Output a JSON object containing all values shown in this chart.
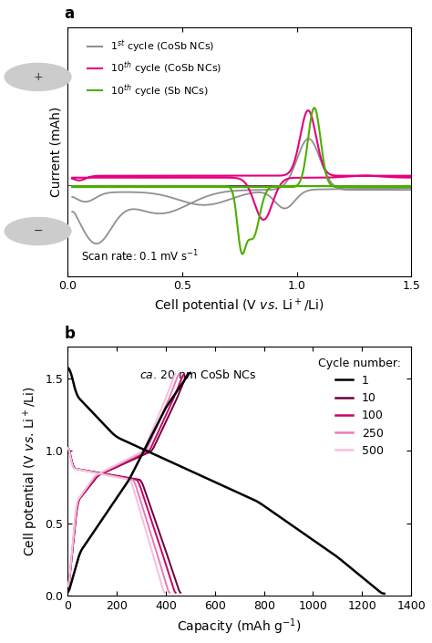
{
  "panel_a_label": "a",
  "panel_b_label": "b",
  "cv_xlabel": "Cell potential (V $\\it{vs}$. Li$^+$/Li)",
  "cv_ylabel": "Current (mAh)",
  "cv_xlim": [
    0,
    1.5
  ],
  "cv_annotation": "Scan rate: 0.1 mV s$^{-1}$",
  "cv_legend": [
    {
      "label": "1$^{st}$ cycle (CoSb NCs)",
      "color": "#909090"
    },
    {
      "label": "10$^{th}$ cycle (CoSb NCs)",
      "color": "#e6007e"
    },
    {
      "label": "10$^{th}$ cycle (Sb NCs)",
      "color": "#4caf00"
    }
  ],
  "gcd_xlabel": "Capacity (mAh g$^{-1}$)",
  "gcd_ylabel": "Cell potential (V $\\it{vs}$. Li$^+$/Li)",
  "gcd_xlim": [
    0,
    1400
  ],
  "gcd_ylim": [
    0,
    1.72
  ],
  "gcd_annotation_italic": "ca.",
  "gcd_annotation_rest": " 20 nm CoSb NCs",
  "gcd_legend_title": "Cycle number:",
  "gcd_legend": [
    {
      "label": "1",
      "color": "#000000"
    },
    {
      "label": "10",
      "color": "#6b0040"
    },
    {
      "label": "100",
      "color": "#cc0066"
    },
    {
      "label": "250",
      "color": "#e87bba"
    },
    {
      "label": "500",
      "color": "#f5c0dc"
    }
  ]
}
